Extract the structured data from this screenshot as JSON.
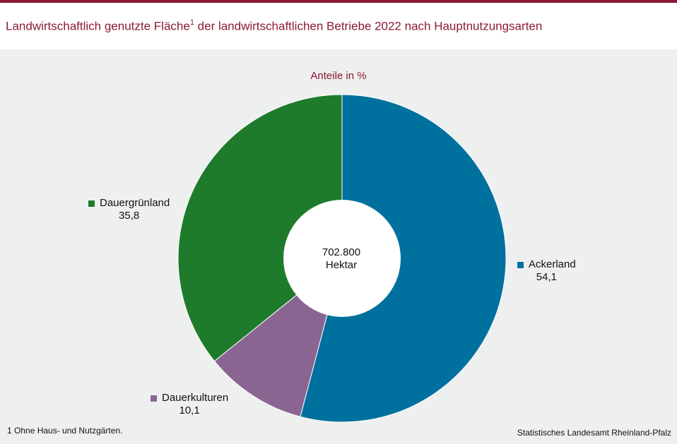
{
  "title": "Landwirtschaftlich genutzte Fläche",
  "title_sup": "1",
  "title_rest": " der landwirtschaftlichen Betriebe 2022 nach Hauptnutzungsarten",
  "subtitle": "Anteile in %",
  "center": {
    "value": "702.800",
    "unit": "Hektar"
  },
  "footnote": "1 Ohne Haus- und Nutzgärten.",
  "source": "Statistisches Landesamt Rheinland-Pfalz",
  "colors": {
    "brand": "#8b1a34",
    "panel": "#eeefef"
  },
  "chart_data": {
    "type": "pie",
    "variant": "donut",
    "title": "Anteile in %",
    "slices": [
      {
        "name": "Ackerland",
        "value": 54.1,
        "label": "54,1",
        "color": "#00709f"
      },
      {
        "name": "Dauerkulturen",
        "value": 10.1,
        "label": "10,1",
        "color": "#8a6592"
      },
      {
        "name": "Dauergrünland",
        "value": 35.8,
        "label": "35,8",
        "color": "#1e7b2c"
      }
    ],
    "start_angle": "12 o'clock",
    "direction": "clockwise"
  }
}
